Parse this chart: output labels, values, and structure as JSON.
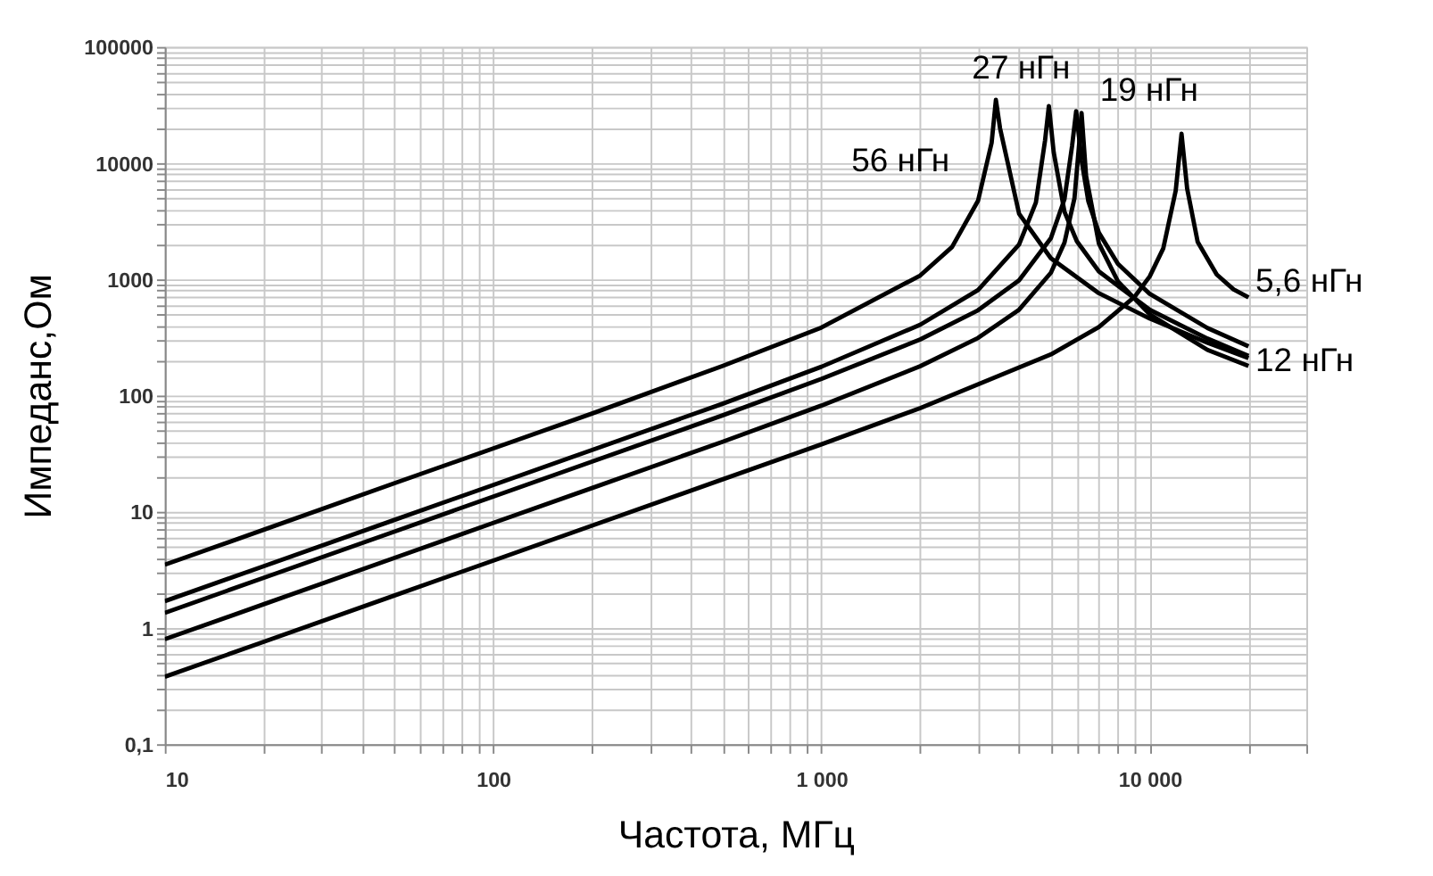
{
  "chart_data": {
    "type": "line",
    "xlabel": "Частота, МГц",
    "ylabel": "Импеданс,Ом",
    "log": "xy",
    "grid": true,
    "legend": false,
    "marker": "none",
    "line_style": "solid",
    "xlim": [
      10,
      30000
    ],
    "ylim": [
      0.1,
      100000
    ],
    "xticks": [
      10,
      100,
      {
        "value": 1000,
        "label": "1 000"
      },
      {
        "value": 10000,
        "label": "10 000"
      }
    ],
    "yticks": [
      {
        "value": 0.1,
        "label": "0,1"
      },
      1,
      10,
      100,
      1000,
      10000,
      100000
    ],
    "series": [
      {
        "name": "56 нГн",
        "color": "#000000",
        "x": [
          10,
          20,
          50,
          100,
          200,
          500,
          1000,
          2000,
          2500,
          3000,
          3300,
          3400,
          3500,
          4000,
          5000,
          7000,
          10000,
          15000,
          20000
        ],
        "values": [
          3.5,
          7,
          17.6,
          35,
          70,
          180,
          385,
          1080,
          1900,
          4750,
          15000,
          35000,
          20000,
          3670,
          1520,
          760,
          460,
          285,
          210
        ]
      },
      {
        "name": "27 нГн",
        "color": "#000000",
        "x": [
          10,
          20,
          50,
          100,
          200,
          500,
          1000,
          2000,
          3000,
          4000,
          4500,
          4800,
          4930,
          5100,
          5500,
          6000,
          7000,
          10000,
          15000,
          20000
        ],
        "values": [
          1.7,
          3.4,
          8.5,
          17,
          34,
          85,
          177,
          407,
          810,
          1990,
          4580,
          15700,
          31000,
          12400,
          3820,
          2125,
          1170,
          547,
          309,
          219
        ]
      },
      {
        "name": "19 нГн",
        "color": "#000000",
        "x": [
          10,
          20,
          50,
          100,
          200,
          500,
          1000,
          2000,
          3000,
          4000,
          5000,
          5500,
          5800,
          5970,
          6200,
          6500,
          7000,
          8000,
          10000,
          15000,
          20000
        ],
        "values": [
          1.35,
          2.7,
          6.75,
          13.5,
          27,
          67.5,
          139,
          304,
          542,
          980,
          2260,
          4900,
          14000,
          28000,
          10600,
          4720,
          2520,
          1360,
          750,
          381,
          265
        ]
      },
      {
        "name": "12 нГн",
        "color": "#000000",
        "x": [
          10,
          20,
          50,
          100,
          200,
          500,
          1000,
          2000,
          3000,
          4000,
          5000,
          5500,
          5900,
          6100,
          6200,
          6400,
          7000,
          8000,
          10000,
          15000,
          20000
        ],
        "values": [
          0.8,
          1.6,
          4,
          8,
          16,
          40,
          82,
          179,
          313,
          548,
          1140,
          2070,
          5000,
          15000,
          27000,
          7760,
          2040,
          962,
          500,
          247,
          180
        ]
      },
      {
        "name": "5,6 нГн",
        "color": "#000000",
        "x": [
          10,
          20,
          50,
          100,
          200,
          500,
          1000,
          2000,
          5000,
          7000,
          9000,
          10000,
          11000,
          12000,
          12500,
          13000,
          14000,
          16000,
          18000,
          20000
        ],
        "values": [
          0.38,
          0.76,
          1.9,
          3.8,
          7.6,
          19,
          38,
          78,
          226,
          388,
          710,
          1060,
          1850,
          5800,
          17900,
          6050,
          2100,
          1100,
          820,
          700
        ]
      }
    ]
  }
}
